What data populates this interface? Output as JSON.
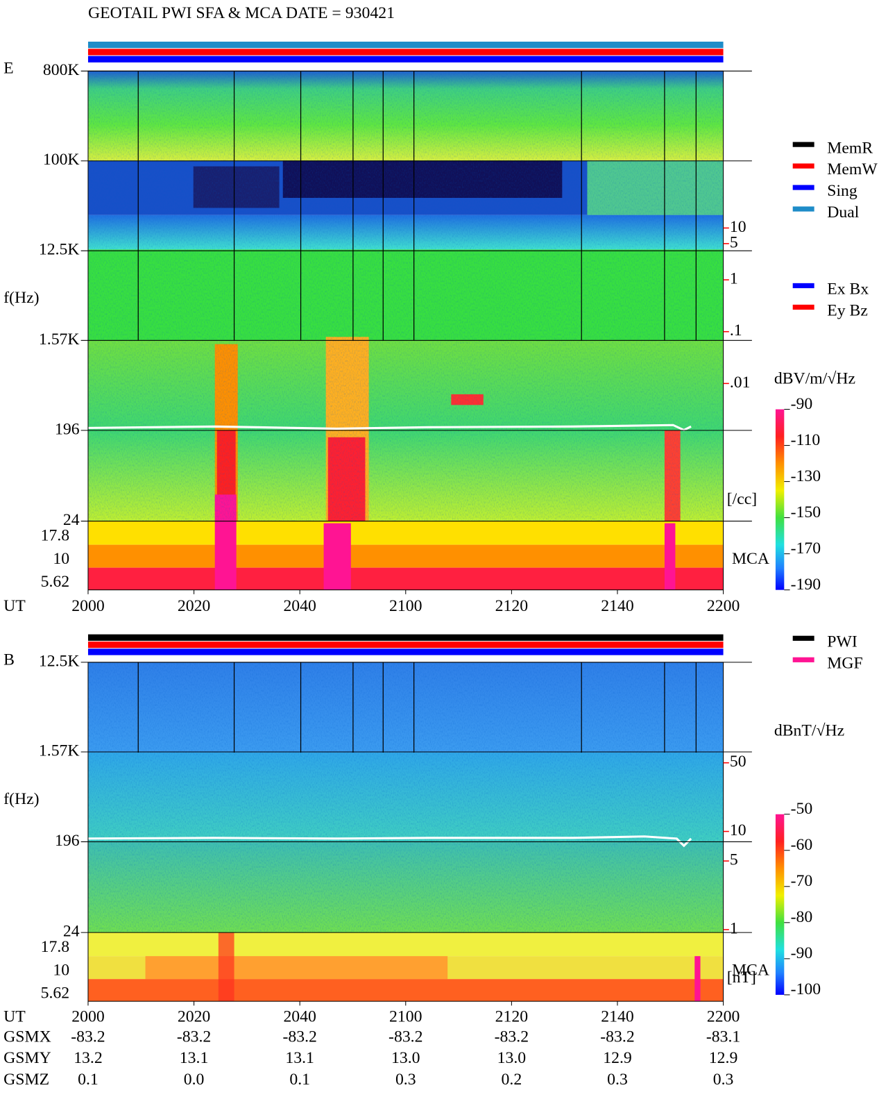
{
  "title": "GEOTAIL   PWI SFA & MCA   DATE = 930421",
  "chart_data": [
    {
      "type": "spectrogram",
      "panel": "E",
      "y_label": "f(Hz)",
      "log_y": true,
      "ylim": [
        24,
        800000
      ],
      "yticks": [
        {
          "value": 800000,
          "label": "800K"
        },
        {
          "value": 100000,
          "label": "100K"
        },
        {
          "value": 12500,
          "label": "12.5K"
        },
        {
          "value": 1570,
          "label": "1.57K"
        },
        196,
        24
      ],
      "mca_channels": [
        17.8,
        10,
        5.62
      ],
      "mca_label": "MCA",
      "x_label": "UT",
      "x_categories": [
        "2000",
        "2020",
        "2040",
        "2100",
        "2120",
        "2140",
        "2200"
      ],
      "y2lim": [
        0.001,
        100
      ],
      "y2ticks": [
        10,
        5,
        1,
        {
          "value": 0.1,
          "label": ".1"
        },
        {
          "value": 0.01,
          "label": ".01"
        }
      ],
      "y2_label": "[/cc]",
      "y2_color": "#ff0000",
      "colorbar": {
        "label": "dBV/m/√Hz",
        "zlim": [
          -190,
          -90
        ],
        "ticks": [
          -90,
          -110,
          -130,
          -150,
          -170,
          -190
        ]
      },
      "legend": [
        {
          "name": "MemR",
          "color": "#000000"
        },
        {
          "name": "MemW",
          "color": "#ff0000"
        },
        {
          "name": "Sing",
          "color": "#0000ff"
        },
        {
          "name": "Dual",
          "color": "#1e8cc8"
        }
      ],
      "legend2": [
        {
          "name": "Ex Bx",
          "color": "#0000ff"
        },
        {
          "name": "Ey Bz",
          "color": "#ff0000"
        }
      ]
    },
    {
      "type": "spectrogram",
      "panel": "B",
      "y_label": "f(Hz)",
      "log_y": true,
      "ylim": [
        24,
        12500
      ],
      "yticks": [
        {
          "value": 12500,
          "label": "12.5K"
        },
        {
          "value": 1570,
          "label": "1.57K"
        },
        196,
        24
      ],
      "mca_channels": [
        17.8,
        10,
        5.62
      ],
      "mca_label": "MCA",
      "x_label": "UT",
      "x_categories": [
        "2000",
        "2020",
        "2040",
        "2100",
        "2120",
        "2140",
        "2200"
      ],
      "y2lim": [
        1,
        100
      ],
      "y2ticks": [
        50,
        10,
        5,
        1
      ],
      "y2_label": "[nT]",
      "y2_color": "#ff0000",
      "colorbar": {
        "label": "dBnT/√Hz",
        "zlim": [
          -100,
          -50
        ],
        "ticks": [
          -50,
          -60,
          -70,
          -80,
          -90,
          -100
        ]
      },
      "legend": [
        {
          "name": "PWI",
          "color": "#000000"
        },
        {
          "name": "MGF",
          "color": "#ff1493"
        }
      ]
    }
  ],
  "ephemeris": [
    {
      "label": "GSMX",
      "values": [
        "-83.2",
        "-83.2",
        "-83.2",
        "-83.2",
        "-83.2",
        "-83.2",
        "-83.1"
      ]
    },
    {
      "label": "GSMY",
      "values": [
        "13.2",
        "13.1",
        "13.1",
        "13.0",
        "13.0",
        "12.9",
        "12.9"
      ]
    },
    {
      "label": "GSMZ",
      "values": [
        "0.1",
        "0.0",
        "0.1",
        "0.3",
        "0.2",
        "0.3",
        "0.3"
      ]
    }
  ]
}
